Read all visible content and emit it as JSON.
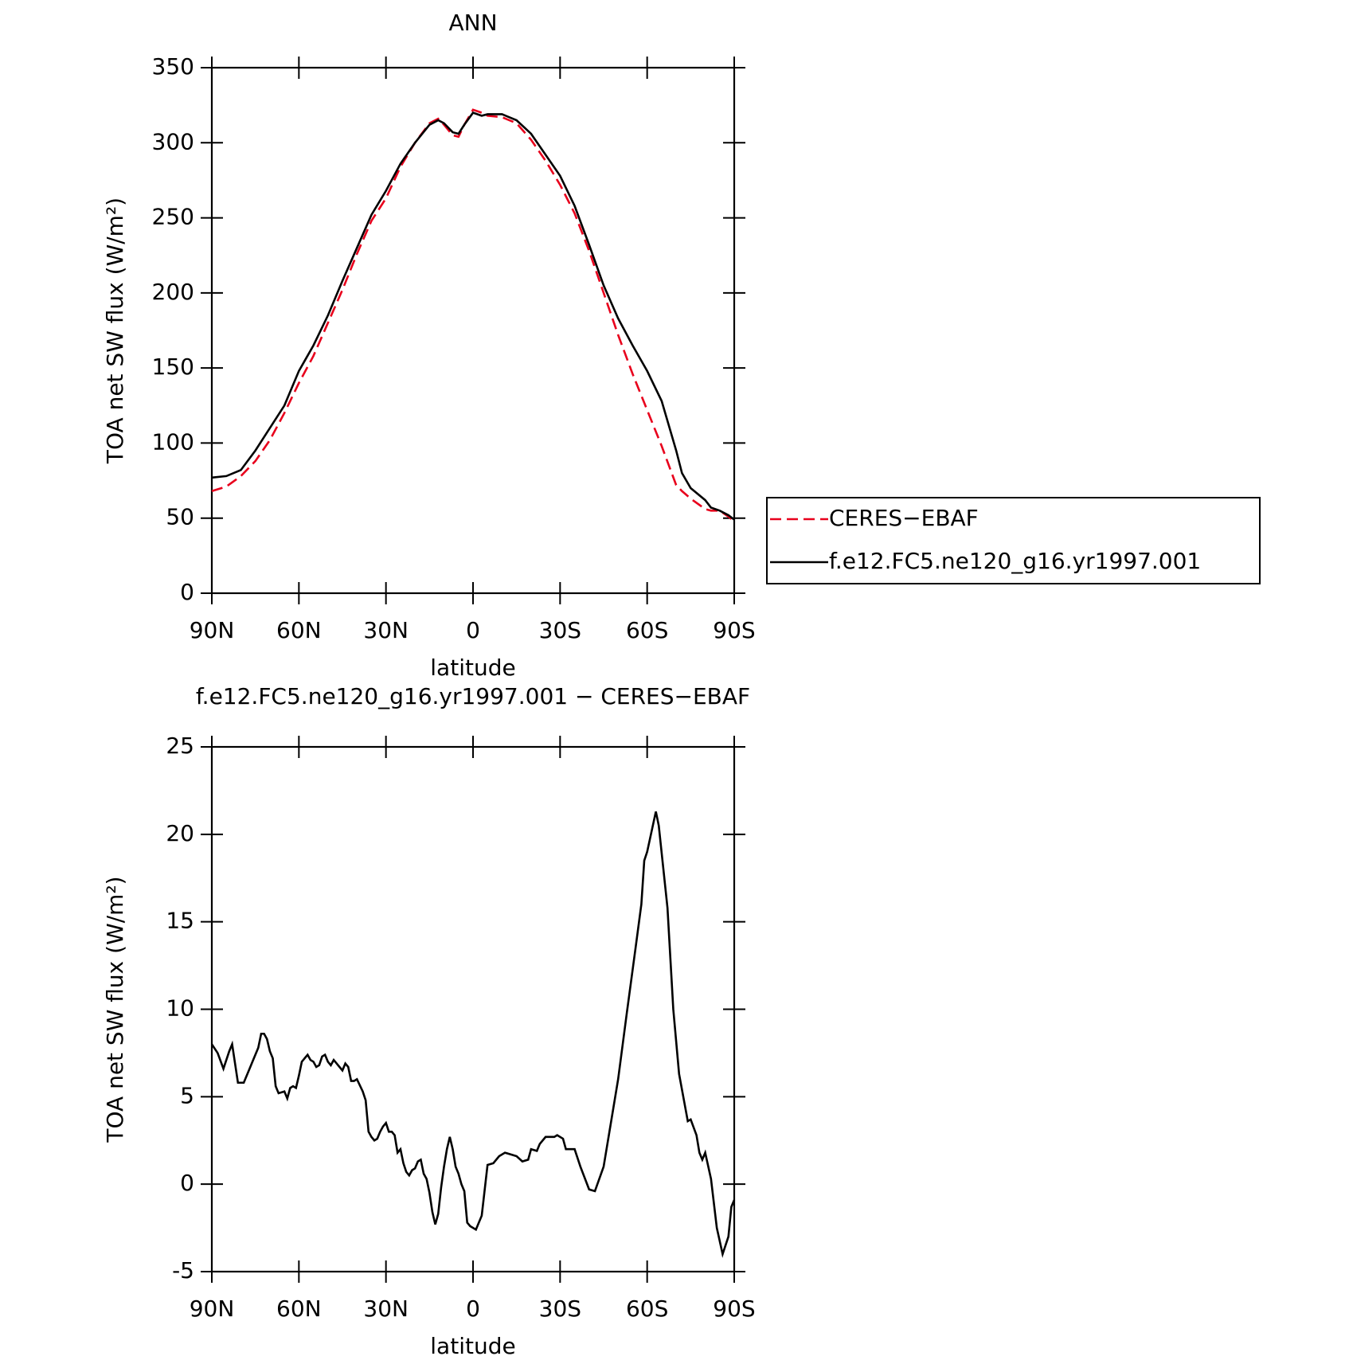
{
  "chart_data": [
    {
      "type": "line",
      "title": "ANN",
      "xlabel": "latitude",
      "ylabel": "TOA net SW flux (W/m²)",
      "x": [
        90,
        85,
        80,
        75,
        70,
        65,
        60,
        55,
        50,
        45,
        40,
        35,
        30,
        25,
        20,
        15,
        12,
        10,
        7,
        5,
        3,
        0,
        -3,
        -5,
        -10,
        -15,
        -20,
        -25,
        -30,
        -35,
        -40,
        -45,
        -50,
        -55,
        -60,
        -65,
        -70,
        -72,
        -75,
        -80,
        -82,
        -85,
        -88,
        -90
      ],
      "series": [
        {
          "name": "CERES−EBAF",
          "color": "#e8001c",
          "dashed": true,
          "values": [
            68,
            71,
            78,
            88,
            102,
            120,
            140,
            158,
            180,
            202,
            226,
            248,
            263,
            284,
            300,
            313,
            316,
            312,
            305,
            304,
            312,
            322,
            320,
            318,
            317,
            313,
            302,
            288,
            272,
            253,
            228,
            200,
            172,
            146,
            122,
            98,
            72,
            68,
            63,
            56,
            55,
            55,
            51,
            48
          ]
        },
        {
          "name": "f.e12.FC5.ne120_g16.yr1997.001",
          "color": "#000000",
          "dashed": false,
          "values": [
            77,
            78,
            82,
            95,
            110,
            125,
            148,
            165,
            185,
            208,
            230,
            252,
            268,
            286,
            300,
            312,
            315,
            313,
            307,
            306,
            312,
            320,
            318,
            319,
            319,
            315,
            306,
            292,
            278,
            258,
            232,
            205,
            183,
            165,
            148,
            128,
            95,
            80,
            70,
            62,
            57,
            55,
            52,
            49
          ]
        }
      ],
      "xlim": [
        90,
        -90
      ],
      "xticks": [
        {
          "value": 90,
          "label": "90N"
        },
        {
          "value": 60,
          "label": "60N"
        },
        {
          "value": 30,
          "label": "30N"
        },
        0,
        {
          "value": -30,
          "label": "30S"
        },
        {
          "value": -60,
          "label": "60S"
        },
        {
          "value": -90,
          "label": "90S"
        }
      ],
      "ylim": [
        0,
        350
      ],
      "yticks": [
        0,
        50,
        100,
        150,
        200,
        250,
        300,
        350
      ],
      "legend": "right"
    },
    {
      "type": "line",
      "title": "f.e12.FC5.ne120_g16.yr1997.001 − CERES−EBAF",
      "xlabel": "latitude",
      "ylabel": "TOA net SW flux (W/m²)",
      "x": [
        90,
        88,
        86,
        84,
        83,
        81,
        79,
        77,
        76,
        74,
        73,
        72,
        71,
        70,
        69,
        68,
        67,
        65,
        64,
        63,
        62,
        61,
        60,
        59,
        57,
        56,
        55,
        54,
        53,
        52,
        51,
        50,
        49,
        48,
        47,
        46,
        45,
        44,
        43,
        42,
        41,
        40,
        38,
        37,
        36,
        35,
        34,
        33,
        32,
        31,
        30,
        29,
        28,
        27,
        26,
        25,
        24,
        23,
        22,
        21,
        20,
        19,
        18,
        17,
        16,
        15,
        14,
        13,
        12,
        11,
        10,
        9,
        8,
        7,
        6,
        5,
        4,
        3,
        2,
        1,
        -1,
        -3,
        -5,
        -7,
        -9,
        -11,
        -15,
        -17,
        -19,
        -20,
        -22,
        -23,
        -25,
        -28,
        -29,
        -31,
        -32,
        -35,
        -37,
        -40,
        -42,
        -45,
        -47,
        -50,
        -53,
        -56,
        -58,
        -59,
        -60,
        -63,
        -64,
        -67,
        -69,
        -71,
        -74,
        -75,
        -77,
        -78,
        -79,
        -80,
        -82,
        -84,
        -86,
        -88,
        -89,
        -90
      ],
      "values": [
        8.0,
        7.5,
        6.6,
        7.6,
        8.0,
        5.8,
        5.8,
        6.6,
        7.0,
        7.8,
        8.6,
        8.6,
        8.3,
        7.6,
        7.2,
        5.6,
        5.2,
        5.3,
        4.9,
        5.5,
        5.6,
        5.5,
        6.2,
        7.0,
        7.4,
        7.1,
        7.0,
        6.7,
        6.8,
        7.3,
        7.4,
        7.0,
        6.8,
        7.1,
        6.9,
        6.7,
        6.5,
        6.9,
        6.7,
        5.9,
        5.9,
        6.0,
        5.3,
        4.8,
        3.0,
        2.7,
        2.5,
        2.6,
        3.0,
        3.3,
        3.5,
        3.0,
        3.0,
        2.8,
        1.8,
        2.0,
        1.2,
        0.7,
        0.5,
        0.8,
        0.9,
        1.3,
        1.4,
        0.6,
        0.3,
        -0.5,
        -1.6,
        -2.3,
        -1.7,
        -0.2,
        1.0,
        2.0,
        2.7,
        2.0,
        1.0,
        0.6,
        0.0,
        -0.4,
        -2.2,
        -2.4,
        -2.6,
        -1.8,
        1.1,
        1.2,
        1.6,
        1.8,
        1.6,
        1.3,
        1.4,
        2.0,
        1.9,
        2.3,
        2.7,
        2.7,
        2.8,
        2.6,
        2.0,
        2.0,
        1.0,
        -0.3,
        -0.4,
        1.0,
        3.0,
        6.0,
        9.8,
        13.5,
        16.0,
        18.5,
        19.0,
        21.3,
        20.5,
        15.8,
        10.0,
        6.3,
        3.6,
        3.7,
        2.8,
        1.8,
        1.4,
        1.8,
        0.3,
        -2.5,
        -4.0,
        -3.0,
        -1.3,
        -0.9
      ],
      "color": "#000000",
      "xlim": [
        90,
        -90
      ],
      "xticks": [
        {
          "value": 90,
          "label": "90N"
        },
        {
          "value": 60,
          "label": "60N"
        },
        {
          "value": 30,
          "label": "30N"
        },
        0,
        {
          "value": -30,
          "label": "30S"
        },
        {
          "value": -60,
          "label": "60S"
        },
        {
          "value": -90,
          "label": "90S"
        }
      ],
      "ylim": [
        -5,
        25
      ],
      "yticks": [
        -5,
        0,
        5,
        10,
        15,
        20,
        25
      ]
    }
  ]
}
